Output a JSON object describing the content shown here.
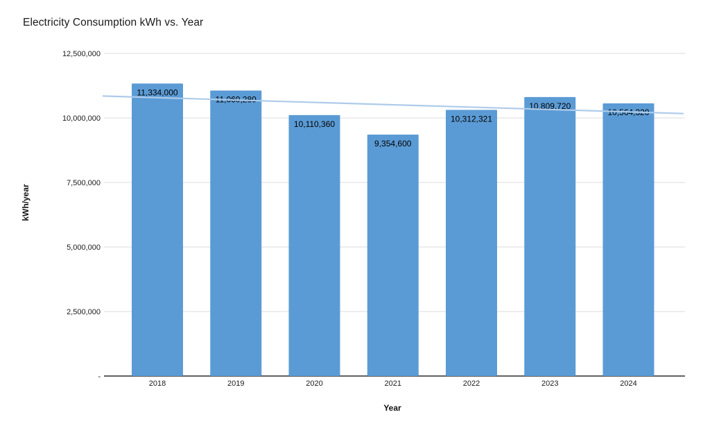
{
  "chart_data": {
    "type": "bar",
    "title": "Electricity Consumption kWh vs. Year",
    "xlabel": "Year",
    "ylabel": "kWh/year",
    "categories": [
      "2018",
      "2019",
      "2020",
      "2021",
      "2022",
      "2023",
      "2024"
    ],
    "values": [
      11334000,
      11060280,
      10110360,
      9354600,
      10312321,
      10809720,
      10564320
    ],
    "bar_labels": [
      "11,334,000",
      "11,060,280",
      "10,110,360",
      "9,354,600",
      "10,312,321",
      "10,809,720",
      "10,564,320"
    ],
    "y_ticks": [
      0,
      2500000,
      5000000,
      7500000,
      10000000,
      12500000
    ],
    "y_tick_labels": [
      "-",
      "2,500,000",
      "5,000,000",
      "7,500,000",
      "10,000,000",
      "12,500,000"
    ],
    "ylim": [
      0,
      12500000
    ],
    "grid": true,
    "legend": false,
    "trendline": {
      "start_value": 10850000,
      "end_value": 10170000
    },
    "colors": {
      "bar": "#5b9bd5",
      "trendline": "#aecbea",
      "gridline": "#e2e2e2",
      "axis_line": "#000000",
      "tick_text": "#1a1a1a",
      "bar_label_text": "#000000"
    }
  }
}
